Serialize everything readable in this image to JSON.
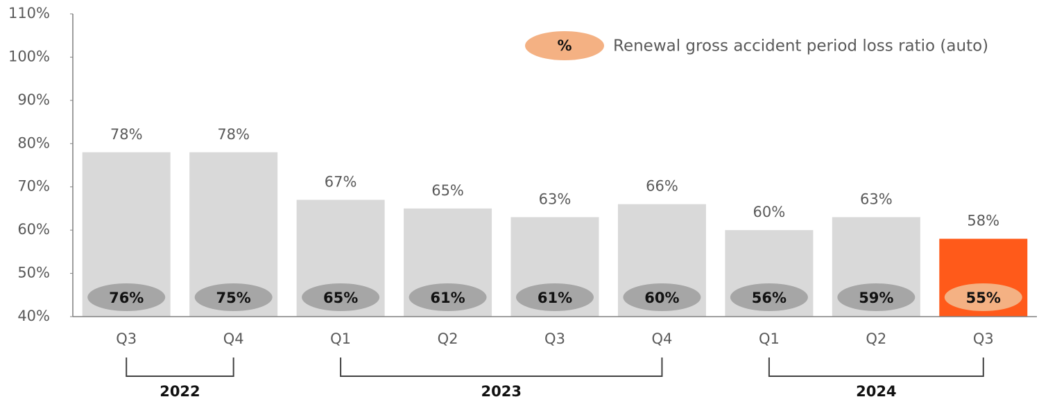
{
  "chart_data": {
    "type": "bar",
    "categories": [
      "Q3",
      "Q4",
      "Q1",
      "Q2",
      "Q3",
      "Q4",
      "Q1",
      "Q2",
      "Q3"
    ],
    "series": [
      {
        "colors": [
          "#d9d9d9",
          "#d9d9d9",
          "#d9d9d9",
          "#d9d9d9",
          "#d9d9d9",
          "#d9d9d9",
          "#d9d9d9",
          "#d9d9d9",
          "#ff5a1a"
        ],
        "values": [
          78,
          78,
          67,
          65,
          63,
          66,
          60,
          63,
          58
        ],
        "value_labels": [
          "78%",
          "78%",
          "67%",
          "65%",
          "63%",
          "66%",
          "60%",
          "63%",
          "58%"
        ]
      },
      {
        "name": "Renewal gross accident period loss ratio (auto)",
        "colors": [
          "#a6a6a6",
          "#a6a6a6",
          "#a6a6a6",
          "#a6a6a6",
          "#a6a6a6",
          "#a6a6a6",
          "#a6a6a6",
          "#a6a6a6",
          "#f4b183"
        ],
        "values": [
          76,
          75,
          65,
          61,
          61,
          60,
          56,
          59,
          55
        ],
        "value_labels": [
          "76%",
          "75%",
          "65%",
          "61%",
          "61%",
          "60%",
          "56%",
          "59%",
          "55%"
        ]
      }
    ],
    "legend_marker_label": "%",
    "legend_color": "#f4b183",
    "legend_position": "top-right",
    "year_groups": [
      {
        "label": "2022",
        "span": [
          0,
          1
        ]
      },
      {
        "label": "2023",
        "span": [
          2,
          5
        ]
      },
      {
        "label": "2024",
        "span": [
          6,
          8
        ]
      }
    ],
    "ylim": [
      40,
      110
    ],
    "yticks": [
      {
        "value": 40,
        "label": "40%"
      },
      {
        "value": 50,
        "label": "50%"
      },
      {
        "value": 60,
        "label": "60%"
      },
      {
        "value": 70,
        "label": "70%"
      },
      {
        "value": 80,
        "label": "80%"
      },
      {
        "value": 90,
        "label": "90%"
      },
      {
        "value": 100,
        "label": "100%"
      },
      {
        "value": 110,
        "label": "110%"
      }
    ],
    "grid": false
  }
}
